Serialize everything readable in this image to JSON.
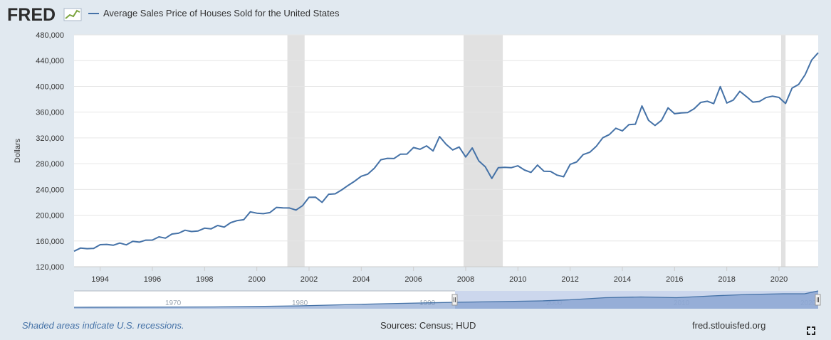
{
  "header": {
    "logo_text": "FRED",
    "series_title": "Average Sales Price of Houses Sold for the United States"
  },
  "colors": {
    "series": "#4572a7",
    "background": "#e1e9f0",
    "plot": "#ffffff",
    "recession": "#e1e1e1",
    "navigator_mask": "#bfcde8"
  },
  "footer": {
    "recession_note": "Shaded areas indicate U.S. recessions.",
    "sources": "Sources: Census; HUD",
    "site": "fred.stlouisfed.org"
  },
  "icons": {
    "fullscreen": "fullscreen-icon"
  },
  "chart_data": {
    "type": "line",
    "title": "",
    "ylabel": "Dollars",
    "xlabel": "",
    "xlim": [
      1993.0,
      2021.5
    ],
    "ylim": [
      120000,
      480000
    ],
    "y_ticks": [
      120000,
      160000,
      200000,
      240000,
      280000,
      320000,
      360000,
      400000,
      440000,
      480000
    ],
    "y_tick_labels": [
      "120,000",
      "160,000",
      "200,000",
      "240,000",
      "280,000",
      "320,000",
      "360,000",
      "400,000",
      "440,000",
      "480,000"
    ],
    "x_ticks": [
      1994,
      1996,
      1998,
      2000,
      2002,
      2004,
      2006,
      2008,
      2010,
      2012,
      2014,
      2016,
      2018,
      2020
    ],
    "x_tick_labels": [
      "1994",
      "1996",
      "1998",
      "2000",
      "2002",
      "2004",
      "2006",
      "2008",
      "2010",
      "2012",
      "2014",
      "2016",
      "2018",
      "2020"
    ],
    "grid": true,
    "legend_position": "top-left",
    "recessions": [
      [
        2001.17,
        2001.83
      ],
      [
        2007.92,
        2009.42
      ],
      [
        2020.08,
        2020.25
      ]
    ],
    "series": [
      {
        "name": "Average Sales Price of Houses Sold for the United States",
        "x": [
          1993.0,
          1993.25,
          1993.5,
          1993.75,
          1994.0,
          1994.25,
          1994.5,
          1994.75,
          1995.0,
          1995.25,
          1995.5,
          1995.75,
          1996.0,
          1996.25,
          1996.5,
          1996.75,
          1997.0,
          1997.25,
          1997.5,
          1997.75,
          1998.0,
          1998.25,
          1998.5,
          1998.75,
          1999.0,
          1999.25,
          1999.5,
          1999.75,
          2000.0,
          2000.25,
          2000.5,
          2000.75,
          2001.0,
          2001.25,
          2001.5,
          2001.75,
          2002.0,
          2002.25,
          2002.5,
          2002.75,
          2003.0,
          2003.25,
          2003.5,
          2003.75,
          2004.0,
          2004.25,
          2004.5,
          2004.75,
          2005.0,
          2005.25,
          2005.5,
          2005.75,
          2006.0,
          2006.25,
          2006.5,
          2006.75,
          2007.0,
          2007.25,
          2007.5,
          2007.75,
          2008.0,
          2008.25,
          2008.5,
          2008.75,
          2009.0,
          2009.25,
          2009.5,
          2009.75,
          2010.0,
          2010.25,
          2010.5,
          2010.75,
          2011.0,
          2011.25,
          2011.5,
          2011.75,
          2012.0,
          2012.25,
          2012.5,
          2012.75,
          2013.0,
          2013.25,
          2013.5,
          2013.75,
          2014.0,
          2014.25,
          2014.5,
          2014.75,
          2015.0,
          2015.25,
          2015.5,
          2015.75,
          2016.0,
          2016.25,
          2016.5,
          2016.75,
          2017.0,
          2017.25,
          2017.5,
          2017.75,
          2018.0,
          2018.25,
          2018.5,
          2018.75,
          2019.0,
          2019.25,
          2019.5,
          2019.75,
          2020.0,
          2020.25,
          2020.5,
          2020.75,
          2021.0,
          2021.25,
          2021.5
        ],
        "values": [
          144100,
          149000,
          148000,
          148500,
          154200,
          154700,
          153300,
          156800,
          154000,
          159400,
          158200,
          161300,
          161400,
          166400,
          164400,
          170800,
          172000,
          176600,
          174700,
          175600,
          179800,
          178900,
          184100,
          181500,
          188500,
          191700,
          193000,
          205200,
          203100,
          202400,
          204000,
          212100,
          211400,
          211200,
          208000,
          214800,
          227800,
          227900,
          219900,
          232500,
          233200,
          239300,
          246300,
          253000,
          260500,
          263800,
          273000,
          286100,
          288300,
          288000,
          294700,
          294900,
          305100,
          302300,
          307600,
          299800,
          322100,
          310000,
          301300,
          305900,
          290400,
          304400,
          284400,
          275100,
          257000,
          273800,
          274400,
          273800,
          276700,
          270200,
          266400,
          277800,
          268200,
          268000,
          262200,
          259700,
          278900,
          282700,
          294200,
          297700,
          306800,
          320200,
          325200,
          335000,
          330900,
          340600,
          341300,
          369700,
          347400,
          339300,
          347300,
          366700,
          357500,
          358700,
          359400,
          365300,
          375100,
          377000,
          373200,
          399600,
          374200,
          378700,
          392300,
          384100,
          375500,
          376600,
          382600,
          384800,
          382800,
          373400,
          397300,
          402900,
          418200,
          440800,
          452200
        ]
      }
    ]
  }
}
